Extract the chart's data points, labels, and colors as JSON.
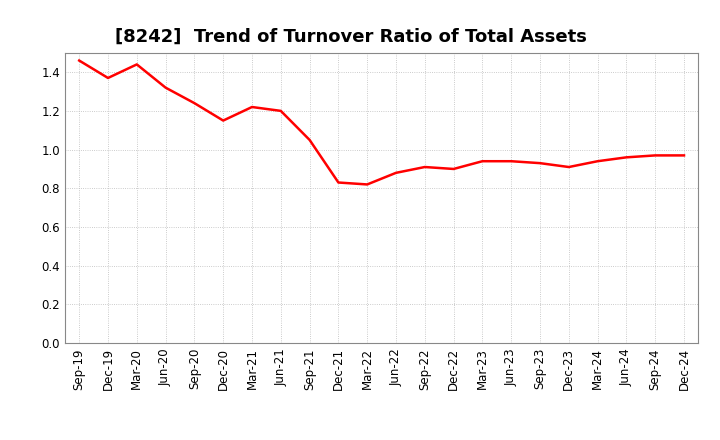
{
  "title": "[8242]  Trend of Turnover Ratio of Total Assets",
  "line_color": "#FF0000",
  "background_color": "#FFFFFF",
  "grid_color": "#BBBBBB",
  "plot_bg_color": "#FFFFFF",
  "ylim": [
    0.0,
    1.5
  ],
  "yticks": [
    0.0,
    0.2,
    0.4,
    0.6,
    0.8,
    1.0,
    1.2,
    1.4
  ],
  "x_labels": [
    "Sep-19",
    "Dec-19",
    "Mar-20",
    "Jun-20",
    "Sep-20",
    "Dec-20",
    "Mar-21",
    "Jun-21",
    "Sep-21",
    "Dec-21",
    "Mar-22",
    "Jun-22",
    "Sep-22",
    "Dec-22",
    "Mar-23",
    "Jun-23",
    "Sep-23",
    "Dec-23",
    "Mar-24",
    "Jun-24",
    "Sep-24",
    "Dec-24"
  ],
  "values": [
    1.46,
    1.37,
    1.44,
    1.32,
    1.24,
    1.15,
    1.22,
    1.2,
    1.05,
    0.83,
    0.82,
    0.88,
    0.91,
    0.9,
    0.94,
    0.94,
    0.93,
    0.91,
    0.94,
    0.96,
    0.97,
    0.97
  ],
  "title_fontsize": 13,
  "tick_fontsize": 8.5,
  "line_width": 1.8
}
